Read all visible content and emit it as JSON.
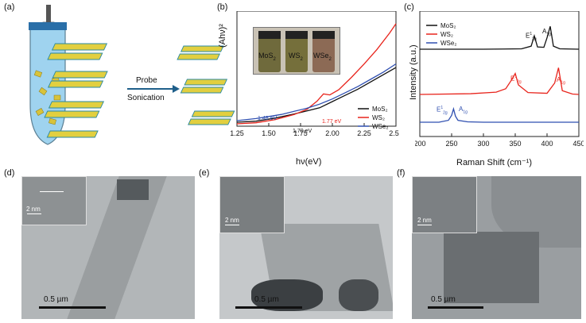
{
  "panels": {
    "a": {
      "label": "(a)",
      "arrow_top": "Probe",
      "arrow_bottom": "Sonication"
    },
    "b": {
      "label": "(b)",
      "inset_vials": [
        "MoS",
        "WS",
        "WSe"
      ],
      "annotations": [
        "1.48 eV",
        "1.70 eV",
        "1.77 eV"
      ]
    },
    "c": {
      "label": "(c)",
      "peak_labels": [
        "E",
        "A",
        "E",
        "A",
        "E",
        "A"
      ]
    },
    "d": {
      "label": "(d)",
      "inset_scale": "2 nm",
      "scale_bar": "0.5 µm"
    },
    "e": {
      "label": "(e)",
      "inset_scale": "2 nm",
      "scale_bar": "0.5 µm"
    },
    "f": {
      "label": "(f)",
      "inset_scale": "2 nm",
      "scale_bar": "0.5 µm"
    }
  },
  "chart_data": [
    {
      "type": "line",
      "xlabel": "hν(eV)",
      "ylabel": "(Ahν)²",
      "xlim": [
        1.25,
        2.5
      ],
      "xticks": [
        "1.25",
        "1.50",
        "1.75",
        "2.00",
        "2.25",
        "2.50"
      ],
      "legend_placement": "bottom-right",
      "series": [
        {
          "name": "MoS₂",
          "color": "#111111",
          "x": [
            1.25,
            1.4,
            1.55,
            1.7,
            1.8,
            1.9,
            2.0,
            2.1,
            2.2,
            2.3,
            2.4,
            2.5
          ],
          "y": [
            0.0,
            0.01,
            0.04,
            0.08,
            0.11,
            0.14,
            0.2,
            0.26,
            0.32,
            0.39,
            0.46,
            0.53
          ]
        },
        {
          "name": "WS₂",
          "color": "#e8241c",
          "x": [
            1.25,
            1.4,
            1.55,
            1.7,
            1.8,
            1.88,
            1.93,
            1.98,
            2.05,
            2.15,
            2.25,
            2.35,
            2.45,
            2.5
          ],
          "y": [
            0.0,
            0.01,
            0.04,
            0.09,
            0.14,
            0.22,
            0.29,
            0.28,
            0.33,
            0.45,
            0.58,
            0.72,
            0.88,
            0.97
          ]
        },
        {
          "name": "WSe₂",
          "color": "#2f4fb0",
          "x": [
            1.25,
            1.4,
            1.5,
            1.6,
            1.7,
            1.8,
            1.9,
            2.0,
            2.1,
            2.2,
            2.3,
            2.4,
            2.5
          ],
          "y": [
            0.0,
            0.02,
            0.04,
            0.06,
            0.09,
            0.12,
            0.16,
            0.21,
            0.27,
            0.33,
            0.4,
            0.47,
            0.55
          ]
        }
      ]
    },
    {
      "type": "line",
      "xlabel": "Raman Shift (cm⁻¹)",
      "ylabel": "Intensity (a.u.)",
      "xlim": [
        200,
        450
      ],
      "xticks": [
        "200",
        "250",
        "300",
        "350",
        "400",
        "450"
      ],
      "legend_placement": "top-left",
      "series": [
        {
          "name": "MoS₂",
          "color": "#111111",
          "x": [
            200,
            300,
            360,
            375,
            380,
            385,
            395,
            400,
            405,
            410,
            420,
            450
          ],
          "y": [
            0.0,
            0.0,
            0.01,
            0.08,
            0.35,
            0.06,
            0.05,
            0.3,
            0.6,
            0.08,
            0.01,
            0.0
          ]
        },
        {
          "name": "WS₂",
          "color": "#e8241c",
          "x": [
            200,
            280,
            320,
            335,
            345,
            350,
            355,
            370,
            400,
            412,
            418,
            424,
            440,
            450
          ],
          "y": [
            0.0,
            0.02,
            0.06,
            0.15,
            0.4,
            0.55,
            0.25,
            0.05,
            0.03,
            0.3,
            0.7,
            0.1,
            0.01,
            0.0
          ]
        },
        {
          "name": "WSe₂",
          "color": "#2f4fb0",
          "x": [
            200,
            230,
            245,
            250,
            253,
            256,
            260,
            275,
            300,
            350,
            400,
            450
          ],
          "y": [
            0.0,
            0.0,
            0.05,
            0.18,
            0.35,
            0.16,
            0.05,
            0.01,
            0.0,
            0.0,
            0.0,
            0.0
          ]
        }
      ]
    }
  ]
}
